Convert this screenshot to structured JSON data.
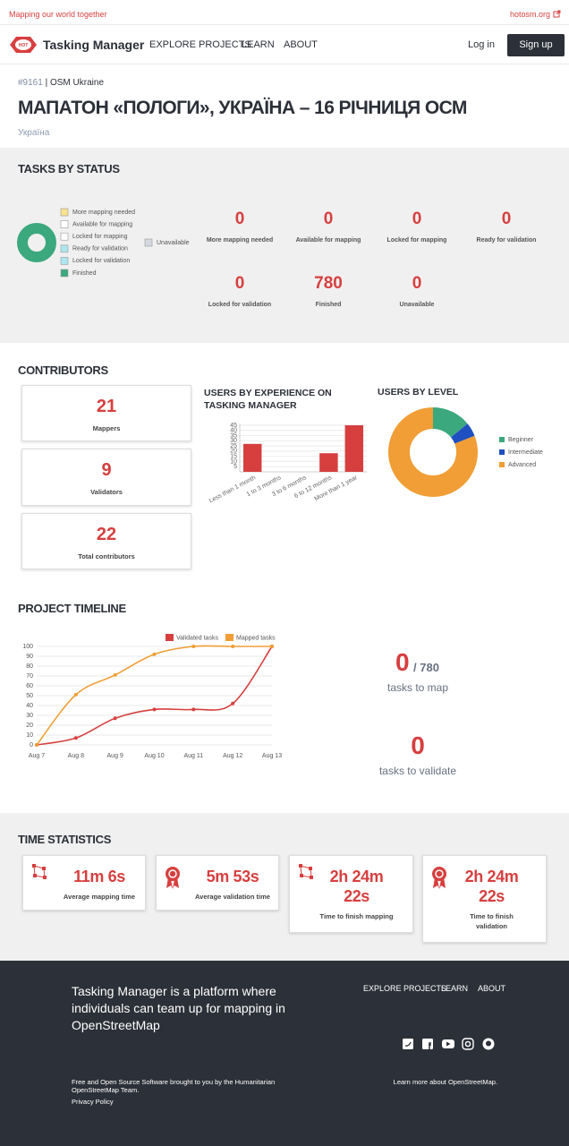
{
  "topbar": {
    "tagline": "Mapping our world together",
    "link": "hotosm.org"
  },
  "nav": {
    "logo_text": "HOT",
    "brand": "Tasking Manager",
    "links": [
      "EXPLORE PROJECTS",
      "LEARN",
      "ABOUT"
    ],
    "login": "Log in",
    "signup": "Sign up"
  },
  "project": {
    "id": "#9161",
    "separator": "|",
    "org": "OSM Ukraine",
    "title": "МАПАТОН «ПОЛОГИ», УКРАЇНА – 16 РІЧНИЦЯ ОСМ",
    "country": "Україна"
  },
  "tasks_by_status": {
    "title": "TASKS BY STATUS",
    "chart": {
      "type": "pie",
      "categories": [
        "More mapping needed",
        "Available for mapping",
        "Locked for mapping",
        "Ready for validation",
        "Locked for validation",
        "Finished",
        "Unavailable"
      ],
      "values": [
        0,
        0,
        0,
        0,
        0,
        780,
        0
      ],
      "colors": [
        "#f9e38c",
        "#ffffff",
        "#ffffff",
        "#ade6ef",
        "#ade6ef",
        "#3ba87e",
        "#d5d8e0"
      ]
    }
  },
  "contributors": {
    "title": "CONTRIBUTORS",
    "stats": [
      {
        "value": 21,
        "label": "Mappers"
      },
      {
        "value": 9,
        "label": "Validators"
      },
      {
        "value": 22,
        "label": "Total contributors"
      }
    ],
    "experience": {
      "type": "bar",
      "title": "USERS BY EXPERIENCE ON TASKING MANAGER",
      "categories": [
        "Less than 1 month",
        "1 to 3 months",
        "3 to 6 months",
        "6 to 12 months",
        "More than 1 year"
      ],
      "values": [
        27,
        0,
        0,
        18,
        45
      ],
      "color": "#d73f3f",
      "ylim": [
        0,
        45
      ],
      "yticks": [
        5,
        10,
        15,
        20,
        25,
        30,
        35,
        40,
        45
      ],
      "grid": true
    },
    "levels": {
      "type": "pie",
      "title": "USERS BY LEVEL",
      "categories": [
        "Beginner",
        "Intermediate",
        "Advanced"
      ],
      "values": [
        14,
        5,
        81
      ],
      "colors": [
        "#3ba87e",
        "#1f4fc1",
        "#f09e35"
      ]
    }
  },
  "timeline": {
    "title": "PROJECT TIMELINE",
    "chart": {
      "type": "line",
      "categories": [
        "Aug 7",
        "Aug 8",
        "Aug 9",
        "Aug 10",
        "Aug 11",
        "Aug 12",
        "Aug 13"
      ],
      "series": [
        {
          "name": "Validated tasks",
          "color": "#d73f3f",
          "values": [
            0,
            7,
            27,
            36,
            36,
            42,
            100
          ]
        },
        {
          "name": "Mapped tasks",
          "color": "#f09e35",
          "values": [
            0,
            51,
            71,
            92,
            100,
            100,
            100
          ]
        }
      ],
      "ylim": [
        0,
        100
      ],
      "yticks": [
        0,
        10,
        20,
        30,
        40,
        50,
        60,
        70,
        80,
        90,
        100
      ],
      "grid": true
    },
    "to_map": {
      "value": 0,
      "separator": "/",
      "total": 780,
      "label": "tasks to map"
    },
    "to_validate": {
      "value": 0,
      "label": "tasks to validate"
    }
  },
  "time_stats": {
    "title": "TIME STATISTICS",
    "items": [
      {
        "value": "11m 6s",
        "label": "Average mapping time"
      },
      {
        "value": "5m 53s",
        "label": "Average validation time"
      },
      {
        "value": "2h 24m 22s",
        "label": "Time to finish mapping"
      },
      {
        "value": "2h 24m 22s",
        "label": "Time to finish validation"
      }
    ]
  },
  "footer": {
    "tagline": "Tasking Manager is a platform where individuals can team up for mapping in OpenStreetMap",
    "links": [
      "EXPLORE PROJECTS",
      "LEARN",
      "ABOUT"
    ],
    "credit": "Free and Open Source Software brought to you by the Humanitarian OpenStreetMap Team.",
    "privacy": "Privacy Policy",
    "learn_more": "Learn more about OpenStreetMap."
  }
}
